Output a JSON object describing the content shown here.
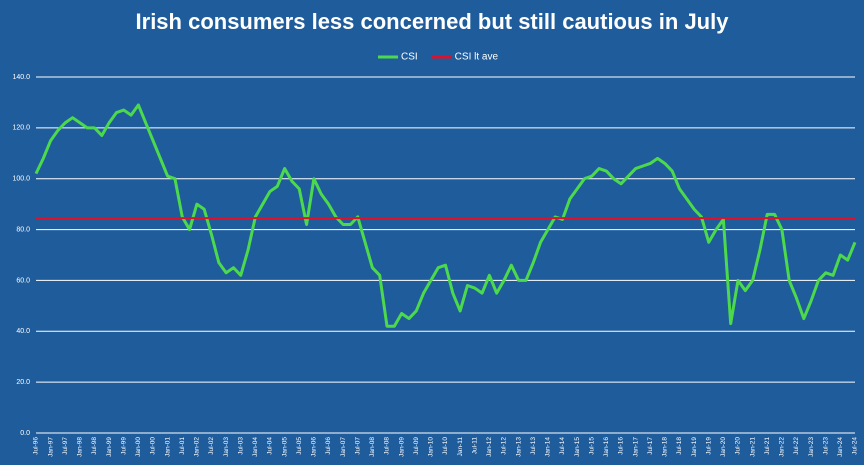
{
  "chart_data": {
    "type": "line",
    "title": "Irish consumers less concerned but still cautious in July",
    "categories": [
      "Jul-96",
      null,
      "Jan-97",
      null,
      "Jul-97",
      null,
      "Jan-98",
      null,
      "Jul-98",
      null,
      "Jan-99",
      null,
      "Jul-99",
      null,
      "Jan-00",
      null,
      "Jul-00",
      null,
      "Jan-01",
      null,
      "Jul-01",
      null,
      "Jan-02",
      null,
      "Jul-02",
      null,
      "Jan-03",
      null,
      "Jul-03",
      null,
      "Jan-04",
      null,
      "Jul-04",
      null,
      "Jan-05",
      null,
      "Jul-05",
      null,
      "Jan-06",
      null,
      "Jul-06",
      null,
      "Jan-07",
      null,
      "Jul-07",
      null,
      "Jan-08",
      null,
      "Jul-08",
      null,
      "Jan-09",
      null,
      "Jul-09",
      null,
      "Jan-10",
      null,
      "Jul-10",
      null,
      "Jan-11",
      null,
      "Jul-11",
      null,
      "Jan-12",
      null,
      "Jul-12",
      null,
      "Jan-13",
      null,
      "Jul-13",
      null,
      "Jan-14",
      null,
      "Jul-14",
      null,
      "Jan-15",
      null,
      "Jul-15",
      null,
      "Jan-16",
      null,
      "Jul-16",
      null,
      "Jan-17",
      null,
      "Jul-17",
      null,
      "Jan-18",
      null,
      "Jul-18",
      null,
      "Jan-19",
      null,
      "Jul-19",
      null,
      "Jan-20",
      null,
      "Jul-20",
      null,
      "Jan-21",
      null,
      "Jul-21",
      null,
      "Jan-22",
      null,
      "Jul-22",
      null,
      "Jan-23",
      null,
      "Jul-23",
      null,
      "Jan-24",
      null,
      "Jul-24"
    ],
    "series": [
      {
        "name": "CSI",
        "color": "#4cd94c",
        "values": [
          102,
          108,
          115,
          119,
          122,
          124,
          122,
          120,
          120,
          117,
          122,
          126,
          127,
          125,
          129,
          122,
          115,
          108,
          101,
          100,
          85,
          80,
          90,
          88,
          78,
          67,
          63,
          65,
          62,
          72,
          85,
          90,
          95,
          97,
          104,
          99,
          96,
          82,
          100,
          94,
          90,
          85,
          82,
          82,
          85,
          75,
          65,
          62,
          42,
          42,
          47,
          45,
          48,
          55,
          60,
          65,
          66,
          55,
          48,
          58,
          57,
          55,
          62,
          55,
          60,
          66,
          60,
          60,
          67,
          75,
          80,
          85,
          84,
          92,
          96,
          100,
          101,
          104,
          103,
          100,
          98,
          101,
          104,
          105,
          106,
          108,
          106,
          103,
          96,
          92,
          88,
          85,
          75,
          80,
          84,
          43,
          60,
          56,
          60,
          72,
          86,
          86,
          80,
          60,
          53,
          45,
          52,
          60,
          63,
          62,
          70,
          68,
          75
        ]
      },
      {
        "name": "CSI lt ave",
        "color": "#e0102a",
        "value": 84.5
      }
    ],
    "ylim": [
      0,
      140
    ],
    "yticks": [
      {
        "value": 0,
        "label": "0.0"
      },
      {
        "value": 20,
        "label": "20.0"
      },
      {
        "value": 40,
        "label": "40.0"
      },
      {
        "value": 60,
        "label": "60.0"
      },
      {
        "value": 80,
        "label": "80.0"
      },
      {
        "value": 100,
        "label": "100.0"
      },
      {
        "value": 120,
        "label": "120.0"
      },
      {
        "value": 140,
        "label": "140.0"
      }
    ],
    "grid": true
  }
}
